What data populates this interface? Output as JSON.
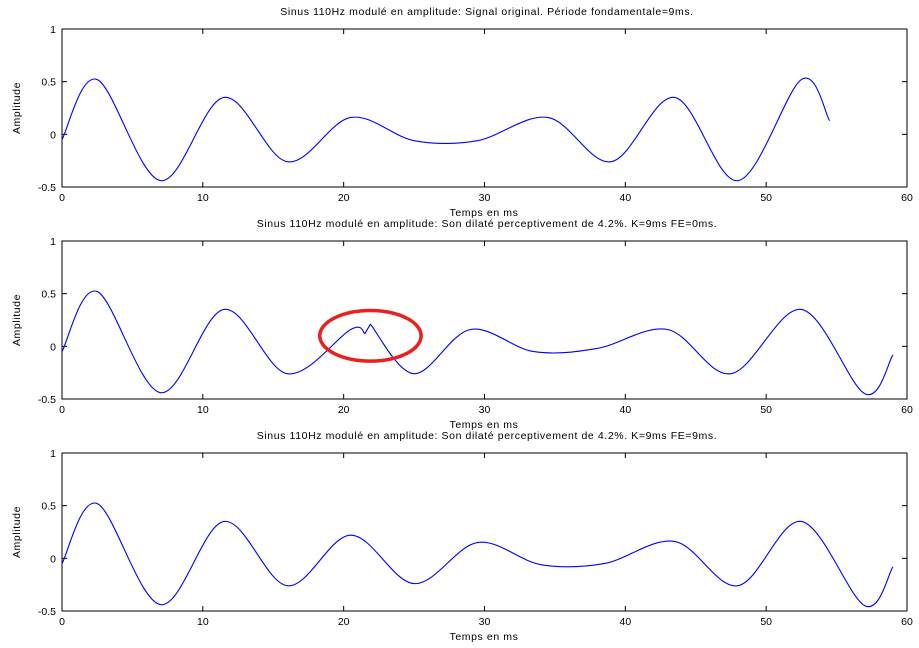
{
  "colors": {
    "line": "#0000ff",
    "highlight": "#e8211c",
    "axes": "#000000"
  },
  "chart_data": [
    {
      "type": "line",
      "title": "Sinus 110Hz modulé en amplitude: Signal original. Période fondamentale=9ms.",
      "xlabel": "Temps en ms",
      "ylabel": "Amplitude",
      "xlim": [
        0,
        60
      ],
      "ylim": [
        -0.5,
        1
      ],
      "xticks": [
        0,
        10,
        20,
        30,
        40,
        50,
        60
      ],
      "yticks": [
        -0.5,
        0,
        0.5,
        1
      ],
      "xtick_labels": [
        "0",
        "10",
        "20",
        "30",
        "40",
        "50",
        "60"
      ],
      "ytick_labels": [
        "-0.5",
        "0",
        "0.5",
        "1"
      ],
      "series": [
        {
          "x": [
            0,
            2.5,
            7.0,
            11.5,
            16.0,
            20.5,
            25.0,
            29.5,
            34.5,
            39.0,
            43.5,
            48.0,
            52.5,
            54.5
          ],
          "y": [
            -0.05,
            0.52,
            -0.44,
            0.35,
            -0.26,
            0.16,
            -0.06,
            -0.06,
            0.16,
            -0.26,
            0.35,
            -0.44,
            0.52,
            0.13
          ]
        }
      ]
    },
    {
      "type": "line",
      "title": "Sinus 110Hz modulé en amplitude: Son dilaté perceptivement de 4.2%. K=9ms FE=0ms.",
      "xlabel": "Temps en ms",
      "ylabel": "Amplitude",
      "xlim": [
        0,
        60
      ],
      "ylim": [
        -0.5,
        1
      ],
      "xticks": [
        0,
        10,
        20,
        30,
        40,
        50,
        60
      ],
      "yticks": [
        -0.5,
        0,
        0.5,
        1
      ],
      "xtick_labels": [
        "0",
        "10",
        "20",
        "30",
        "40",
        "50",
        "60"
      ],
      "ytick_labels": [
        "-0.5",
        "0",
        "0.5",
        "1"
      ],
      "highlight": {
        "cx": 21.9,
        "cy": 0.1,
        "rx": 3.6,
        "ry": 0.24
      },
      "series": [
        {
          "x": [
            0,
            2.5,
            7.0,
            11.5,
            16.0,
            20.5,
            21.5,
            21.9,
            25.0,
            29.0,
            33.5,
            38.0,
            43.0,
            47.5,
            52.5,
            57.0,
            59.0
          ],
          "y": [
            -0.05,
            0.52,
            -0.44,
            0.35,
            -0.26,
            0.16,
            0.12,
            0.21,
            -0.26,
            0.16,
            -0.05,
            -0.02,
            0.16,
            -0.26,
            0.35,
            -0.45,
            -0.08
          ]
        }
      ]
    },
    {
      "type": "line",
      "title": "Sinus 110Hz modulé en amplitude: Son dilaté perceptivement de 4.2%. K=9ms FE=9ms.",
      "xlabel": "Temps en ms",
      "ylabel": "Amplitude",
      "xlim": [
        0,
        60
      ],
      "ylim": [
        -0.5,
        1
      ],
      "xticks": [
        0,
        10,
        20,
        30,
        40,
        50,
        60
      ],
      "yticks": [
        -0.5,
        0,
        0.5,
        1
      ],
      "xtick_labels": [
        "0",
        "10",
        "20",
        "30",
        "40",
        "50",
        "60"
      ],
      "ytick_labels": [
        "-0.5",
        "0",
        "0.5",
        "1"
      ],
      "series": [
        {
          "x": [
            0,
            2.5,
            7.0,
            11.5,
            16.0,
            20.5,
            25.0,
            29.5,
            34.0,
            38.5,
            43.5,
            48.0,
            52.5,
            57.0,
            59.0
          ],
          "y": [
            -0.05,
            0.52,
            -0.44,
            0.35,
            -0.26,
            0.22,
            -0.24,
            0.15,
            -0.06,
            -0.05,
            0.16,
            -0.26,
            0.35,
            -0.45,
            -0.08
          ]
        }
      ]
    }
  ]
}
